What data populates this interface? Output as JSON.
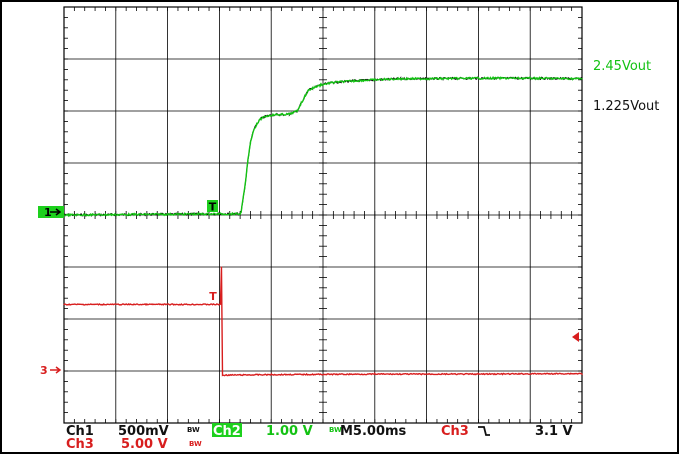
{
  "colors": {
    "ch1": "#13c213",
    "ch3": "#d81e1e",
    "label_black": "#111111",
    "grid": "#000000",
    "ch2_badge_bg": "#1dd01d",
    "ch2_badge_text": "#ffffff"
  },
  "trigger_marker": "T",
  "right_annotations": {
    "green": "2.45Vout",
    "black": "1.225Vout"
  },
  "channel_markers": {
    "ch1": "1",
    "ch3": "3"
  },
  "status_bar": {
    "ch1_label": "Ch1",
    "ch1_scale": "500mV",
    "bw1": "BW",
    "ch2_label": "Ch2",
    "ch2_scale": "1.00 V",
    "bw2": "BW",
    "timebase": "M5.00ms",
    "trig_source": "Ch3",
    "trig_slope_icon": "falling-edge-icon",
    "trig_level": "3.1 V",
    "ch3_label": "Ch3",
    "ch3_scale": "5.00 V",
    "bw3": "BW"
  },
  "chart_data": {
    "type": "line",
    "grid": true,
    "x_divisions": 10,
    "y_divisions": 8,
    "xlim": [
      0,
      10
    ],
    "ylim": [
      -4,
      4
    ],
    "series": [
      {
        "channel": "ch1",
        "color": "#13c213",
        "x": [
          0,
          2.9,
          3.4,
          3.42,
          3.5,
          3.55,
          3.6,
          3.65,
          3.72,
          3.8,
          3.9,
          4.0,
          4.1,
          4.2,
          4.35,
          4.5,
          4.58,
          4.66,
          4.72,
          4.8,
          4.95,
          5.2,
          5.6,
          6.0,
          6.5,
          7.0,
          8.0,
          9.0,
          10.0
        ],
        "y": [
          0,
          0.02,
          0.02,
          0.06,
          0.6,
          1.05,
          1.4,
          1.6,
          1.75,
          1.85,
          1.9,
          1.92,
          1.93,
          1.93,
          1.94,
          2.0,
          2.15,
          2.3,
          2.4,
          2.44,
          2.5,
          2.55,
          2.58,
          2.6,
          2.62,
          2.62,
          2.63,
          2.63,
          2.62
        ]
      },
      {
        "channel": "ch3",
        "color": "#d81e1e",
        "x": [
          0,
          3.0,
          3.02,
          3.04,
          3.06,
          4.0,
          6.0,
          8.0,
          10.0
        ],
        "y": [
          -1.72,
          -1.72,
          -1.72,
          -1.0,
          -3.08,
          -3.07,
          -3.06,
          -3.06,
          -3.05
        ]
      }
    ]
  }
}
